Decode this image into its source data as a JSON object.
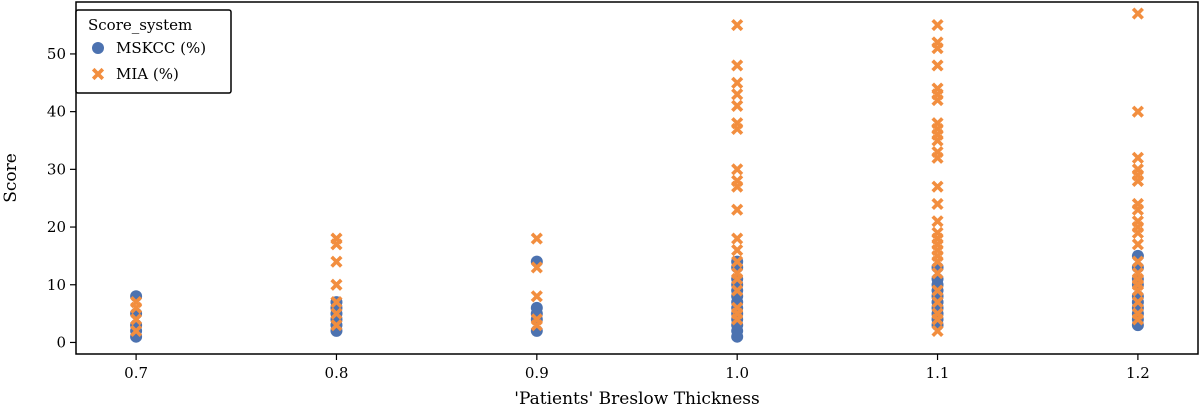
{
  "chart_data": {
    "type": "scatter",
    "xlabel": "'Patients' Breslow Thickness",
    "ylabel": "Score",
    "xlim": [
      0.67,
      1.23
    ],
    "ylim": [
      -2,
      59
    ],
    "x_ticks": [
      0.7,
      0.8,
      0.9,
      1.0,
      1.1,
      1.2
    ],
    "x_tick_labels": [
      "0.7",
      "0.8",
      "0.9",
      "1.0",
      "1.1",
      "1.2"
    ],
    "y_ticks": [
      0,
      10,
      20,
      30,
      40,
      50
    ],
    "y_tick_labels": [
      "0",
      "10",
      "20",
      "30",
      "40",
      "50"
    ],
    "grid": false,
    "legend": {
      "title": "Score_system",
      "placement": "top-left",
      "entries": [
        "MSKCC (%)",
        "MIA (%)"
      ]
    },
    "series": [
      {
        "name": "MSKCC (%)",
        "marker": "circle",
        "color": "#4C72B0",
        "points": [
          [
            0.7,
            8
          ],
          [
            0.7,
            5
          ],
          [
            0.7,
            3
          ],
          [
            0.7,
            2
          ],
          [
            0.7,
            1
          ],
          [
            0.8,
            7
          ],
          [
            0.8,
            6
          ],
          [
            0.8,
            5
          ],
          [
            0.8,
            4
          ],
          [
            0.8,
            3
          ],
          [
            0.8,
            2
          ],
          [
            0.9,
            14
          ],
          [
            0.9,
            6
          ],
          [
            0.9,
            5
          ],
          [
            0.9,
            4
          ],
          [
            0.9,
            2
          ],
          [
            1.0,
            14
          ],
          [
            1.0,
            13
          ],
          [
            1.0,
            11
          ],
          [
            1.0,
            10
          ],
          [
            1.0,
            9
          ],
          [
            1.0,
            8
          ],
          [
            1.0,
            7
          ],
          [
            1.0,
            6
          ],
          [
            1.0,
            5
          ],
          [
            1.0,
            4
          ],
          [
            1.0,
            3
          ],
          [
            1.0,
            2
          ],
          [
            1.0,
            1
          ],
          [
            1.1,
            13
          ],
          [
            1.1,
            11
          ],
          [
            1.1,
            10
          ],
          [
            1.1,
            9
          ],
          [
            1.1,
            8
          ],
          [
            1.1,
            7
          ],
          [
            1.1,
            6
          ],
          [
            1.1,
            5
          ],
          [
            1.1,
            4
          ],
          [
            1.1,
            3
          ],
          [
            1.2,
            15
          ],
          [
            1.2,
            13
          ],
          [
            1.2,
            11
          ],
          [
            1.2,
            10
          ],
          [
            1.2,
            8
          ],
          [
            1.2,
            7
          ],
          [
            1.2,
            6
          ],
          [
            1.2,
            5
          ],
          [
            1.2,
            4
          ],
          [
            1.2,
            3
          ]
        ]
      },
      {
        "name": "MIA (%)",
        "marker": "x",
        "color": "#F28E3F",
        "points": [
          [
            0.7,
            7
          ],
          [
            0.7,
            6
          ],
          [
            0.7,
            4
          ],
          [
            0.7,
            2
          ],
          [
            0.8,
            18
          ],
          [
            0.8,
            17
          ],
          [
            0.8,
            14
          ],
          [
            0.8,
            10
          ],
          [
            0.8,
            7
          ],
          [
            0.8,
            5
          ],
          [
            0.8,
            3
          ],
          [
            0.9,
            18
          ],
          [
            0.9,
            13
          ],
          [
            0.9,
            8
          ],
          [
            0.9,
            4
          ],
          [
            0.9,
            3
          ],
          [
            1.0,
            55
          ],
          [
            1.0,
            48
          ],
          [
            1.0,
            45
          ],
          [
            1.0,
            43
          ],
          [
            1.0,
            41
          ],
          [
            1.0,
            38
          ],
          [
            1.0,
            37
          ],
          [
            1.0,
            30
          ],
          [
            1.0,
            28
          ],
          [
            1.0,
            27
          ],
          [
            1.0,
            23
          ],
          [
            1.0,
            18
          ],
          [
            1.0,
            16
          ],
          [
            1.0,
            14
          ],
          [
            1.0,
            12
          ],
          [
            1.0,
            11
          ],
          [
            1.0,
            9
          ],
          [
            1.0,
            6
          ],
          [
            1.0,
            5
          ],
          [
            1.0,
            4
          ],
          [
            1.1,
            55
          ],
          [
            1.1,
            52
          ],
          [
            1.1,
            51
          ],
          [
            1.1,
            48
          ],
          [
            1.1,
            44
          ],
          [
            1.1,
            43
          ],
          [
            1.1,
            42
          ],
          [
            1.1,
            38
          ],
          [
            1.1,
            37
          ],
          [
            1.1,
            36
          ],
          [
            1.1,
            35
          ],
          [
            1.1,
            33
          ],
          [
            1.1,
            32
          ],
          [
            1.1,
            27
          ],
          [
            1.1,
            24
          ],
          [
            1.1,
            21
          ],
          [
            1.1,
            19
          ],
          [
            1.1,
            18
          ],
          [
            1.1,
            17
          ],
          [
            1.1,
            16
          ],
          [
            1.1,
            15
          ],
          [
            1.1,
            14
          ],
          [
            1.1,
            12
          ],
          [
            1.1,
            9
          ],
          [
            1.1,
            7
          ],
          [
            1.1,
            5
          ],
          [
            1.1,
            4
          ],
          [
            1.1,
            2
          ],
          [
            1.2,
            57
          ],
          [
            1.2,
            40
          ],
          [
            1.2,
            32
          ],
          [
            1.2,
            30
          ],
          [
            1.2,
            29
          ],
          [
            1.2,
            28
          ],
          [
            1.2,
            24
          ],
          [
            1.2,
            23
          ],
          [
            1.2,
            21
          ],
          [
            1.2,
            20
          ],
          [
            1.2,
            19
          ],
          [
            1.2,
            17
          ],
          [
            1.2,
            14
          ],
          [
            1.2,
            12
          ],
          [
            1.2,
            11
          ],
          [
            1.2,
            10
          ],
          [
            1.2,
            9
          ],
          [
            1.2,
            7
          ],
          [
            1.2,
            5
          ],
          [
            1.2,
            4
          ]
        ]
      }
    ]
  }
}
